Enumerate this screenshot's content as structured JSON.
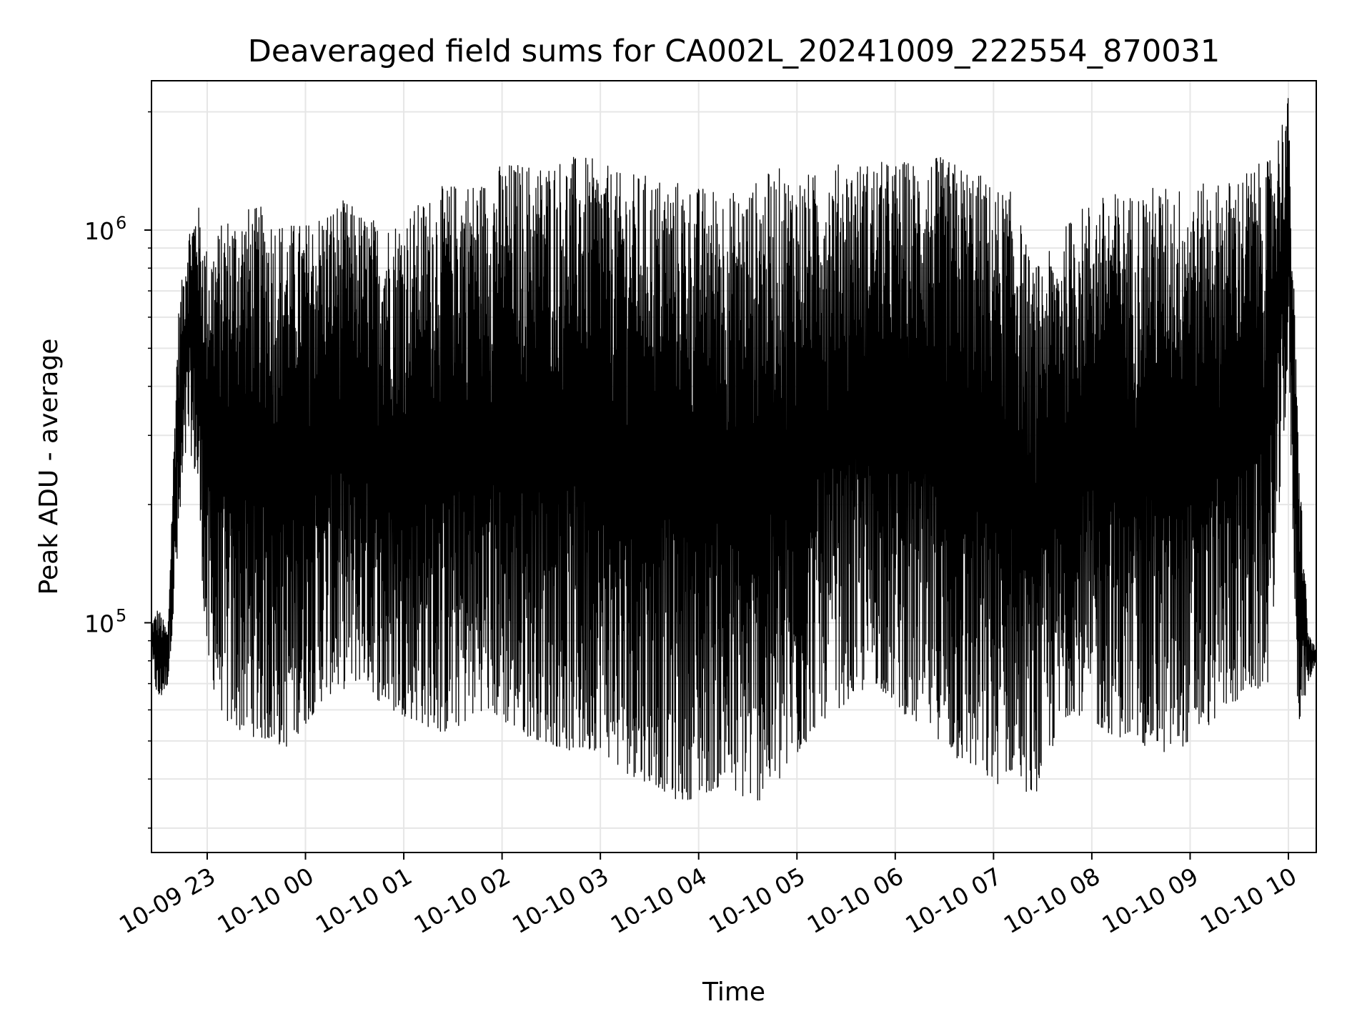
{
  "chart_data": {
    "type": "line",
    "title": "Deaveraged field sums for CA002L_20241009_222554_870031",
    "xlabel": "Time",
    "ylabel": "Peak ADU - average",
    "y_scale": "log",
    "ylim": [
      26000,
      2400000
    ],
    "xlim": [
      "2024-10-09 22:26",
      "2024-10-10 10:17"
    ],
    "grid": true,
    "line_color": "#000000",
    "grid_color": "#e6e6e6",
    "x_ticks": [
      "10-09 23",
      "10-10 00",
      "10-10 01",
      "10-10 02",
      "10-10 03",
      "10-10 04",
      "10-10 05",
      "10-10 06",
      "10-10 07",
      "10-10 08",
      "10-10 09",
      "10-10 10"
    ],
    "x_tick_times": [
      "2024-10-09 23:00",
      "2024-10-10 00:00",
      "2024-10-10 01:00",
      "2024-10-10 02:00",
      "2024-10-10 03:00",
      "2024-10-10 04:00",
      "2024-10-10 05:00",
      "2024-10-10 06:00",
      "2024-10-10 07:00",
      "2024-10-10 08:00",
      "2024-10-10 09:00",
      "2024-10-10 10:00"
    ],
    "y_ticks": [
      {
        "value": 100000,
        "base": "10",
        "exp": "5"
      },
      {
        "value": 1000000,
        "base": "10",
        "exp": "6"
      }
    ],
    "series": [
      {
        "x": [
          "2024-10-09 22:26",
          "2024-10-09 22:30",
          "2024-10-09 22:36",
          "2024-10-09 22:42",
          "2024-10-09 22:48",
          "2024-10-09 22:54",
          "2024-10-09 23:00",
          "2024-10-09 23:12",
          "2024-10-09 23:24",
          "2024-10-09 23:36",
          "2024-10-09 23:48",
          "2024-10-10 00:00",
          "2024-10-10 00:12",
          "2024-10-10 00:24",
          "2024-10-10 00:36",
          "2024-10-10 00:48",
          "2024-10-10 01:00",
          "2024-10-10 01:12",
          "2024-10-10 01:24",
          "2024-10-10 01:36",
          "2024-10-10 01:48",
          "2024-10-10 02:00",
          "2024-10-10 02:12",
          "2024-10-10 02:24",
          "2024-10-10 02:36",
          "2024-10-10 02:48",
          "2024-10-10 03:00",
          "2024-10-10 03:12",
          "2024-10-10 03:24",
          "2024-10-10 03:36",
          "2024-10-10 03:48",
          "2024-10-10 04:00",
          "2024-10-10 04:12",
          "2024-10-10 04:24",
          "2024-10-10 04:36",
          "2024-10-10 04:48",
          "2024-10-10 05:00",
          "2024-10-10 05:12",
          "2024-10-10 05:24",
          "2024-10-10 05:36",
          "2024-10-10 05:48",
          "2024-10-10 06:00",
          "2024-10-10 06:12",
          "2024-10-10 06:24",
          "2024-10-10 06:36",
          "2024-10-10 06:48",
          "2024-10-10 07:00",
          "2024-10-10 07:12",
          "2024-10-10 07:24",
          "2024-10-10 07:36",
          "2024-10-10 07:48",
          "2024-10-10 08:00",
          "2024-10-10 08:12",
          "2024-10-10 08:24",
          "2024-10-10 08:36",
          "2024-10-10 08:48",
          "2024-10-10 09:00",
          "2024-10-10 09:12",
          "2024-10-10 09:24",
          "2024-10-10 09:36",
          "2024-10-10 09:48",
          "2024-10-10 10:00",
          "2024-10-10 10:06",
          "2024-10-10 10:12",
          "2024-10-10 10:17"
        ],
        "low": [
          80000,
          62000,
          70000,
          140000,
          300000,
          220000,
          75000,
          55000,
          52000,
          50000,
          48000,
          55000,
          65000,
          68000,
          72000,
          60000,
          58000,
          55000,
          52000,
          55000,
          60000,
          56000,
          52000,
          50000,
          48000,
          46000,
          48000,
          42000,
          40000,
          38000,
          35000,
          36000,
          38000,
          36000,
          35000,
          38000,
          45000,
          55000,
          60000,
          65000,
          70000,
          62000,
          55000,
          52000,
          45000,
          42000,
          38000,
          42000,
          35000,
          48000,
          60000,
          55000,
          52000,
          50000,
          48000,
          46000,
          50000,
          55000,
          62000,
          65000,
          70000,
          450000,
          55000,
          70000,
          80000
        ],
        "high": [
          100000,
          110000,
          95000,
          600000,
          1000000,
          1200000,
          900000,
          1100000,
          1150000,
          1150000,
          1050000,
          1050000,
          1150000,
          1200000,
          1100000,
          1050000,
          1100000,
          1200000,
          1300000,
          1350000,
          1350000,
          1500000,
          1500000,
          1500000,
          1550000,
          1550000,
          1500000,
          1400000,
          1400000,
          1380000,
          1350000,
          1300000,
          1300000,
          1250000,
          1350000,
          1450000,
          1400000,
          1400000,
          1480000,
          1500000,
          1500000,
          1500000,
          1520000,
          1550000,
          1500000,
          1450000,
          1300000,
          1250000,
          800000,
          900000,
          1100000,
          1200000,
          1250000,
          1250000,
          1300000,
          1300000,
          1300000,
          1320000,
          1350000,
          1450000,
          1500000,
          2200000,
          300000,
          95000,
          85000
        ]
      }
    ]
  }
}
